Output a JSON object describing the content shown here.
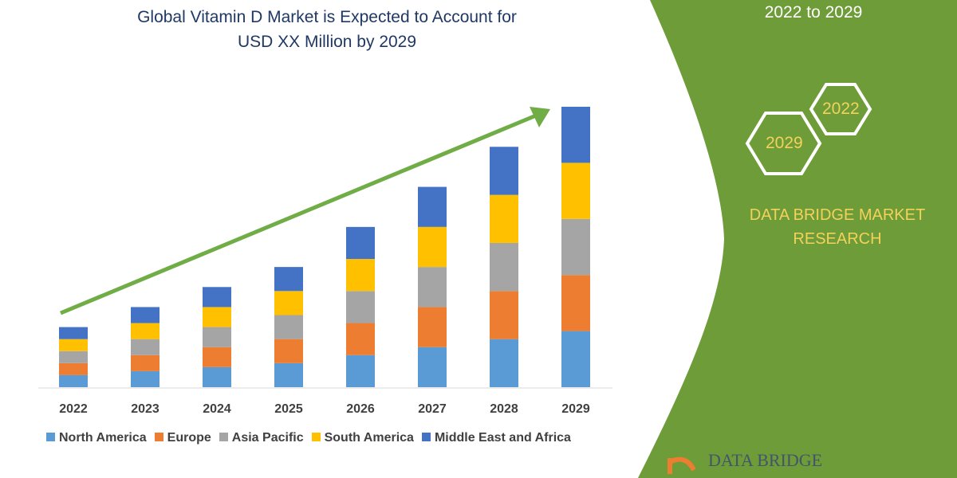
{
  "title_line1": "Global Vitamin D Market is Expected to Account for",
  "title_line2": "USD XX Million by 2029",
  "side": {
    "range": "2022 to 2029",
    "hex_start": "2022",
    "hex_end": "2029",
    "brand_line1": "DATA BRIDGE MARKET",
    "brand_line2": "RESEARCH",
    "logo_text": "DATA BRIDGE",
    "panel_color": "#6e9c39"
  },
  "chart_data": {
    "type": "bar",
    "stacked": true,
    "title": "Global Vitamin D Market is Expected to Account for USD XX Million by 2029",
    "xlabel": "",
    "ylabel": "",
    "y_axis_shown": false,
    "grid": false,
    "legend_position": "bottom",
    "ylim": [
      0,
      350
    ],
    "categories": [
      "2022",
      "2023",
      "2024",
      "2025",
      "2026",
      "2027",
      "2028",
      "2029"
    ],
    "series": [
      {
        "name": "North America",
        "color": "#5b9bd5",
        "values": [
          15,
          20,
          25,
          30,
          40,
          50,
          60,
          70
        ]
      },
      {
        "name": "Europe",
        "color": "#ed7d31",
        "values": [
          15,
          20,
          25,
          30,
          40,
          50,
          60,
          70
        ]
      },
      {
        "name": "Asia Pacific",
        "color": "#a5a5a5",
        "values": [
          15,
          20,
          25,
          30,
          40,
          50,
          60,
          70
        ]
      },
      {
        "name": "South America",
        "color": "#ffc000",
        "values": [
          15,
          20,
          25,
          30,
          40,
          50,
          60,
          70
        ]
      },
      {
        "name": "Middle East and Africa",
        "color": "#4472c4",
        "values": [
          15,
          20,
          25,
          30,
          40,
          50,
          60,
          70
        ]
      }
    ],
    "trend_arrow_color": "#70ad47"
  }
}
